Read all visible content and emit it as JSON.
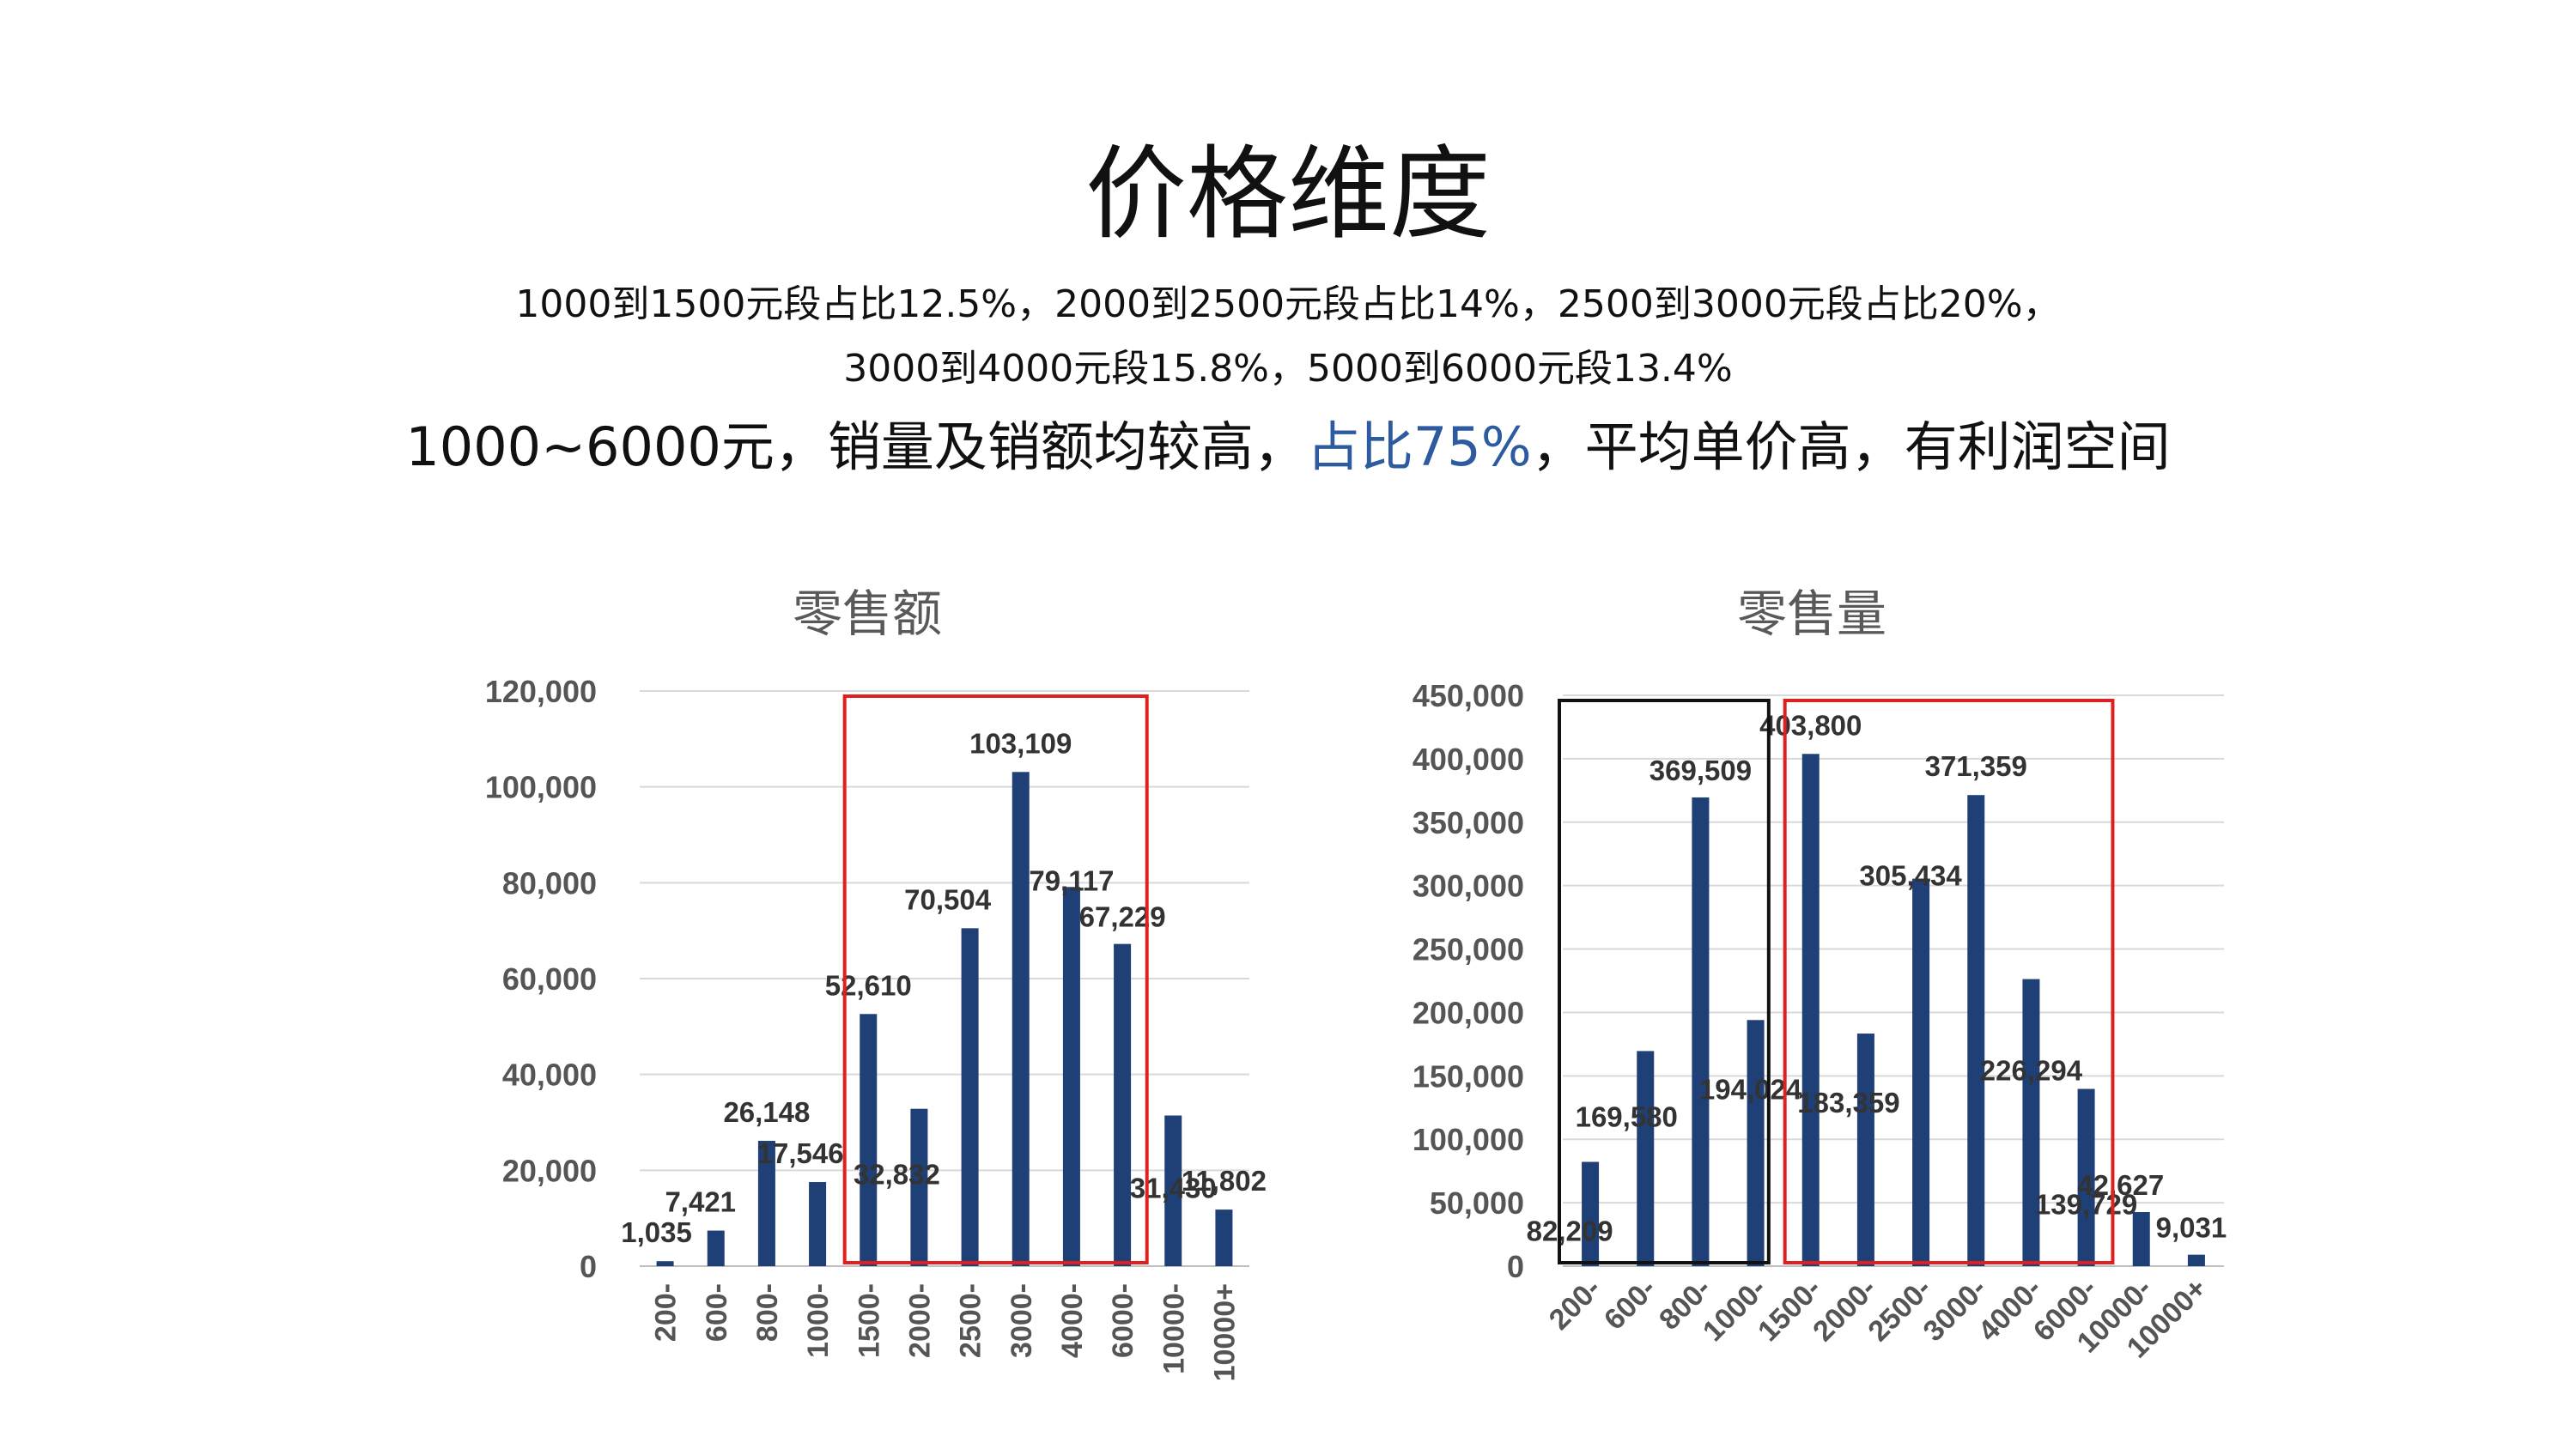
{
  "page": {
    "title": "价格维度",
    "subtitle_line1": "1000到1500元段占比12.5%，2000到2500元段占比14%，2500到3000元段占比20%，",
    "subtitle_line2": "3000到4000元段15.8%，5000到6000元段13.4%",
    "headline_pre": "1000~6000元，销量及销额均较高，",
    "headline_highlight": "占比75%",
    "headline_post": "，平均单价高，有利润空间"
  },
  "colors": {
    "bar": "#1f3f77",
    "highlight_box": "#e02020",
    "black_box": "#111111",
    "grid": "#d9d9d9",
    "axis_text": "#555555",
    "label_text": "#333333",
    "headline_highlight": "#2e5aa0"
  },
  "chart_data": [
    {
      "type": "bar",
      "title": "零售额",
      "categories": [
        "200-",
        "600-",
        "800-",
        "1000-",
        "1500-",
        "2000-",
        "2500-",
        "3000-",
        "4000-",
        "6000-",
        "10000-",
        "10000+"
      ],
      "values": [
        1035,
        7421,
        26148,
        17546,
        52610,
        32832,
        70504,
        103109,
        79117,
        67229,
        31430,
        11802
      ],
      "data_labels": [
        "1,035",
        "7,421",
        "26,148",
        "17,546",
        "52,610",
        "32,832",
        "70,504",
        "103,109",
        "79,117",
        "67,229",
        "31,430",
        "11,802"
      ],
      "ylim": [
        0,
        120000
      ],
      "yticks": [
        0,
        20000,
        40000,
        60000,
        80000,
        100000,
        120000
      ],
      "ytick_labels": [
        "0",
        "20,000",
        "40,000",
        "60,000",
        "80,000",
        "100,000",
        "120,000"
      ],
      "grid": true,
      "highlight_range": [
        4,
        9
      ]
    },
    {
      "type": "bar",
      "title": "零售量",
      "categories": [
        "200-",
        "600-",
        "800-",
        "1000-",
        "1500-",
        "2000-",
        "2500-",
        "3000-",
        "4000-",
        "6000-",
        "10000-",
        "10000+"
      ],
      "values": [
        82209,
        169580,
        369509,
        194024,
        403800,
        183359,
        305434,
        371359,
        226294,
        139729,
        42627,
        9031
      ],
      "data_labels": [
        "82,209",
        "169,580",
        "369,509",
        "194,024",
        "403,800",
        "183,359",
        "305,434",
        "371,359",
        "226,294",
        "139,729",
        "42,627",
        "9,031"
      ],
      "ylim": [
        0,
        450000
      ],
      "yticks": [
        0,
        50000,
        100000,
        150000,
        200000,
        250000,
        300000,
        350000,
        400000,
        450000
      ],
      "ytick_labels": [
        "0",
        "50,000",
        "100,000",
        "150,000",
        "200,000",
        "250,000",
        "300,000",
        "350,000",
        "400,000",
        "450,000"
      ],
      "grid": true,
      "black_range": [
        0,
        3
      ],
      "highlight_range": [
        4,
        9
      ]
    }
  ]
}
